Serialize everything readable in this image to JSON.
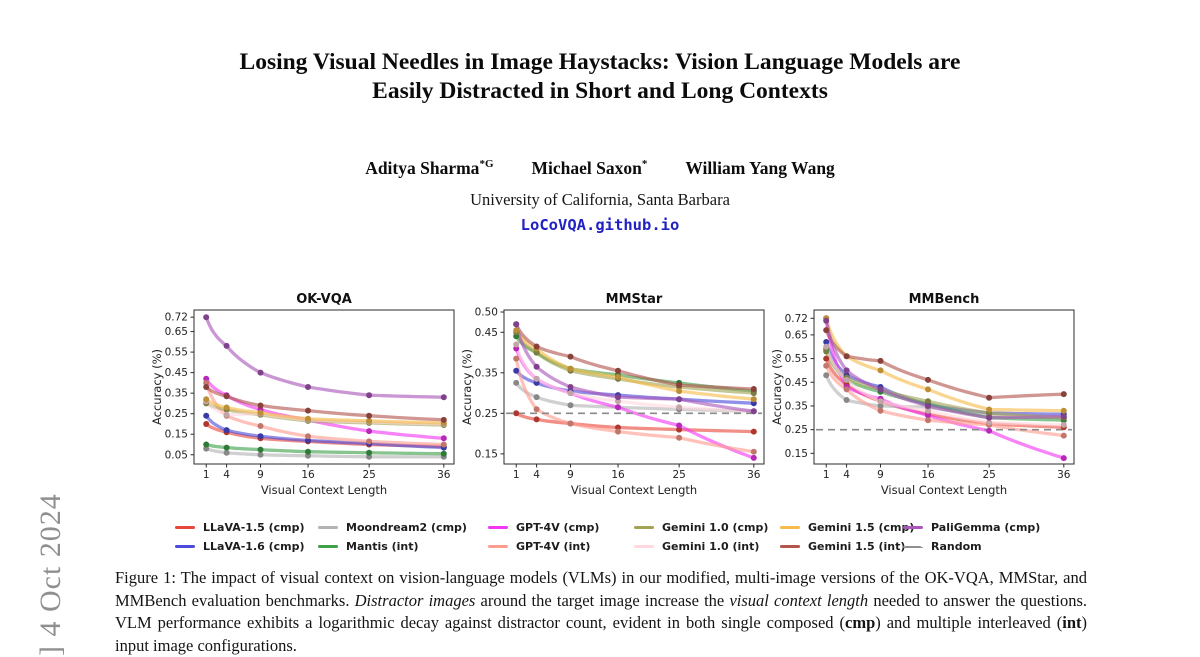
{
  "arxiv_sidebar": {
    "text": "] 4 Oct 2024"
  },
  "header": {
    "title_line1": "Losing Visual Needles in Image Haystacks: Vision Language Models are",
    "title_line2": "Easily Distracted in Short and Long Contexts",
    "authors": [
      {
        "name": "Aditya Sharma",
        "sup": "*G"
      },
      {
        "name": "Michael Saxon",
        "sup": "*"
      },
      {
        "name": "William Yang Wang",
        "sup": ""
      }
    ],
    "affiliation": "University of California, Santa Barbara",
    "link": "LoCoVQA.github.io",
    "link_color": "#2121c4"
  },
  "chart_data": [
    {
      "type": "line",
      "title": "OK-VQA",
      "xlabel": "Visual Context Length",
      "ylabel": "Accuracy (%)",
      "x": [
        1,
        4,
        9,
        16,
        25,
        36
      ],
      "xlim": [
        -0.8,
        37.5
      ],
      "ylim": [
        0.005,
        0.755
      ],
      "yticks": [
        0.72,
        0.65,
        0.55,
        0.45,
        0.35,
        0.25,
        0.15,
        0.05
      ],
      "random_baseline": null,
      "series": [
        {
          "name": "LLaVA-1.5 (cmp)",
          "color": "#e8483c",
          "values": [
            0.2,
            0.16,
            0.13,
            0.115,
            0.1,
            0.09
          ]
        },
        {
          "name": "LLaVA-1.6 (cmp)",
          "color": "#4c4cdb",
          "values": [
            0.24,
            0.17,
            0.14,
            0.12,
            0.105,
            0.085
          ]
        },
        {
          "name": "Moondream2 (cmp)",
          "color": "#b3b3b3",
          "values": [
            0.08,
            0.06,
            0.05,
            0.045,
            0.04,
            0.04
          ]
        },
        {
          "name": "Mantis (int)",
          "color": "#3fa04a",
          "values": [
            0.1,
            0.085,
            0.075,
            0.065,
            0.06,
            0.055
          ]
        },
        {
          "name": "GPT-4V (cmp)",
          "color": "#f336f3",
          "values": [
            0.42,
            0.34,
            0.27,
            0.22,
            0.165,
            0.13
          ]
        },
        {
          "name": "GPT-4V (int)",
          "color": "#ff9d8f",
          "values": [
            0.4,
            0.24,
            0.19,
            0.14,
            0.115,
            0.1
          ]
        },
        {
          "name": "Gemini 1.0 (cmp)",
          "color": "#a3a455",
          "values": [
            0.3,
            0.27,
            0.245,
            0.215,
            0.205,
            0.195
          ]
        },
        {
          "name": "Gemini 1.0 (int)",
          "color": "#ffd9de",
          "values": [
            0.31,
            0.245,
            0.25,
            0.22,
            0.21,
            0.2
          ]
        },
        {
          "name": "Gemini 1.5 (cmp)",
          "color": "#f6bb4a",
          "values": [
            0.32,
            0.28,
            0.255,
            0.225,
            0.215,
            0.205
          ]
        },
        {
          "name": "Gemini 1.5 (int)",
          "color": "#b3564d",
          "values": [
            0.38,
            0.335,
            0.29,
            0.265,
            0.24,
            0.22
          ]
        },
        {
          "name": "PaliGemma (cmp)",
          "color": "#a957ba",
          "values": [
            0.72,
            0.58,
            0.45,
            0.38,
            0.34,
            0.33
          ]
        }
      ]
    },
    {
      "type": "line",
      "title": "MMStar",
      "xlabel": "Visual Context Length",
      "ylabel": "Accuracy (%)",
      "x": [
        1,
        4,
        9,
        16,
        25,
        36
      ],
      "xlim": [
        -0.8,
        37.5
      ],
      "ylim": [
        0.125,
        0.505
      ],
      "yticks": [
        0.5,
        0.45,
        0.35,
        0.25,
        0.15
      ],
      "random_baseline": 0.25,
      "series": [
        {
          "name": "LLaVA-1.5 (cmp)",
          "color": "#e8483c",
          "values": [
            0.25,
            0.235,
            0.225,
            0.215,
            0.21,
            0.205
          ]
        },
        {
          "name": "LLaVA-1.6 (cmp)",
          "color": "#4c4cdb",
          "values": [
            0.355,
            0.325,
            0.305,
            0.295,
            0.285,
            0.275
          ]
        },
        {
          "name": "Moondream2 (cmp)",
          "color": "#b3b3b3",
          "values": [
            0.325,
            0.29,
            0.27,
            0.265,
            0.26,
            0.255
          ]
        },
        {
          "name": "Mantis (int)",
          "color": "#3fa04a",
          "values": [
            0.44,
            0.4,
            0.36,
            0.345,
            0.325,
            0.305
          ]
        },
        {
          "name": "GPT-4V (cmp)",
          "color": "#f336f3",
          "values": [
            0.41,
            0.335,
            0.3,
            0.265,
            0.22,
            0.14
          ]
        },
        {
          "name": "GPT-4V (int)",
          "color": "#ff9d8f",
          "values": [
            0.385,
            0.26,
            0.225,
            0.205,
            0.19,
            0.155
          ]
        },
        {
          "name": "Gemini 1.0 (cmp)",
          "color": "#a3a455",
          "values": [
            0.45,
            0.4,
            0.355,
            0.335,
            0.315,
            0.3
          ]
        },
        {
          "name": "Gemini 1.0 (int)",
          "color": "#ffd9de",
          "values": [
            0.42,
            0.335,
            0.3,
            0.28,
            0.265,
            0.255
          ]
        },
        {
          "name": "Gemini 1.5 (cmp)",
          "color": "#f6bb4a",
          "values": [
            0.455,
            0.41,
            0.36,
            0.34,
            0.305,
            0.285
          ]
        },
        {
          "name": "Gemini 1.5 (int)",
          "color": "#b3564d",
          "values": [
            0.47,
            0.415,
            0.39,
            0.355,
            0.32,
            0.31
          ]
        },
        {
          "name": "PaliGemma (cmp)",
          "color": "#a957ba",
          "values": [
            0.47,
            0.365,
            0.315,
            0.29,
            0.285,
            0.255
          ]
        }
      ]
    },
    {
      "type": "line",
      "title": "MMBench",
      "xlabel": "Visual Context Length",
      "ylabel": "Accuracy (%)",
      "x": [
        1,
        4,
        9,
        16,
        25,
        36
      ],
      "xlim": [
        -0.8,
        37.5
      ],
      "ylim": [
        0.105,
        0.755
      ],
      "yticks": [
        0.72,
        0.65,
        0.55,
        0.45,
        0.35,
        0.25,
        0.15
      ],
      "random_baseline": 0.25,
      "series": [
        {
          "name": "LLaVA-1.5 (cmp)",
          "color": "#e8483c",
          "values": [
            0.55,
            0.44,
            0.37,
            0.315,
            0.275,
            0.26
          ]
        },
        {
          "name": "LLaVA-1.6 (cmp)",
          "color": "#4c4cdb",
          "values": [
            0.62,
            0.48,
            0.43,
            0.355,
            0.32,
            0.315
          ]
        },
        {
          "name": "Moondream2 (cmp)",
          "color": "#b3b3b3",
          "values": [
            0.48,
            0.375,
            0.35,
            0.345,
            0.31,
            0.3
          ]
        },
        {
          "name": "Mantis (int)",
          "color": "#3fa04a",
          "values": [
            0.59,
            0.46,
            0.41,
            0.36,
            0.3,
            0.29
          ]
        },
        {
          "name": "GPT-4V (cmp)",
          "color": "#f336f3",
          "values": [
            0.72,
            0.43,
            0.38,
            0.31,
            0.245,
            0.13
          ]
        },
        {
          "name": "GPT-4V (int)",
          "color": "#ff9d8f",
          "values": [
            0.52,
            0.42,
            0.33,
            0.29,
            0.27,
            0.225
          ]
        },
        {
          "name": "Gemini 1.0 (cmp)",
          "color": "#a3a455",
          "values": [
            0.58,
            0.47,
            0.42,
            0.37,
            0.32,
            0.3
          ]
        },
        {
          "name": "Gemini 1.0 (int)",
          "color": "#ffd9de",
          "values": [
            0.6,
            0.46,
            0.37,
            0.33,
            0.28,
            0.27
          ]
        },
        {
          "name": "Gemini 1.5 (cmp)",
          "color": "#f6bb4a",
          "values": [
            0.72,
            0.56,
            0.5,
            0.42,
            0.335,
            0.33
          ]
        },
        {
          "name": "Gemini 1.5 (int)",
          "color": "#b3564d",
          "values": [
            0.67,
            0.56,
            0.54,
            0.46,
            0.385,
            0.4
          ]
        },
        {
          "name": "PaliGemma (cmp)",
          "color": "#a957ba",
          "values": [
            0.71,
            0.5,
            0.42,
            0.35,
            0.3,
            0.305
          ]
        }
      ]
    }
  ],
  "legend": {
    "columns": [
      [
        {
          "label": "LLaVA-1.5 (cmp)",
          "color": "#e8483c",
          "dashed": false
        },
        {
          "label": "LLaVA-1.6 (cmp)",
          "color": "#4c4cdb",
          "dashed": false
        }
      ],
      [
        {
          "label": "Moondream2 (cmp)",
          "color": "#b3b3b3",
          "dashed": false
        },
        {
          "label": "Mantis (int)",
          "color": "#3fa04a",
          "dashed": false
        }
      ],
      [
        {
          "label": "GPT-4V (cmp)",
          "color": "#f336f3",
          "dashed": false
        },
        {
          "label": "GPT-4V (int)",
          "color": "#ff9d8f",
          "dashed": false
        }
      ],
      [
        {
          "label": "Gemini 1.0 (cmp)",
          "color": "#a3a455",
          "dashed": false
        },
        {
          "label": "Gemini 1.0 (int)",
          "color": "#ffd9de",
          "dashed": false
        }
      ],
      [
        {
          "label": "Gemini 1.5 (cmp)",
          "color": "#f6bb4a",
          "dashed": false
        },
        {
          "label": "Gemini 1.5 (int)",
          "color": "#b3564d",
          "dashed": false
        }
      ],
      [
        {
          "label": "PaliGemma (cmp)",
          "color": "#a957ba",
          "dashed": false
        },
        {
          "label": "Random",
          "color": "#909090",
          "dashed": true
        }
      ]
    ]
  },
  "caption": {
    "segments": [
      {
        "text": "Figure 1: The impact of visual context on vision-language models (VLMs) in our modified, multi-image versions of the OK-VQA, MMStar, and MMBench evaluation benchmarks. "
      },
      {
        "text": "Distractor images",
        "italic": true
      },
      {
        "text": " around the target image increase the "
      },
      {
        "text": "visual context length",
        "italic": true
      },
      {
        "text": " needed to answer the questions. VLM performance exhibits a logarithmic decay against distractor count, evident in both single composed ("
      },
      {
        "text": "cmp",
        "bold": true
      },
      {
        "text": ") and multiple interleaved ("
      },
      {
        "text": "int",
        "bold": true
      },
      {
        "text": ") input image configurations."
      }
    ]
  }
}
